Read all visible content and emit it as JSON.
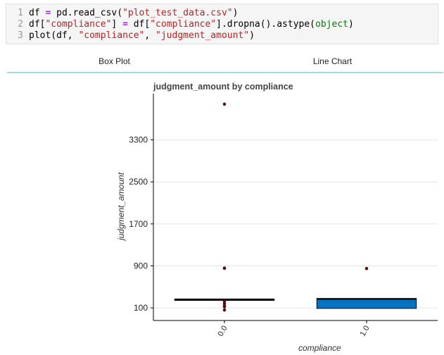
{
  "code_cell": {
    "lines": [
      {
        "no": "1",
        "parts": [
          {
            "t": "df ",
            "c": ""
          },
          {
            "t": "=",
            "c": "op"
          },
          {
            "t": " pd.read_csv(",
            "c": ""
          },
          {
            "t": "\"plot_test_data.csv\"",
            "c": "str"
          },
          {
            "t": ")",
            "c": ""
          }
        ]
      },
      {
        "no": "2",
        "parts": [
          {
            "t": "df[",
            "c": ""
          },
          {
            "t": "\"compliance\"",
            "c": "str"
          },
          {
            "t": "] ",
            "c": ""
          },
          {
            "t": "=",
            "c": "op"
          },
          {
            "t": " df[",
            "c": ""
          },
          {
            "t": "\"compliance\"",
            "c": "str"
          },
          {
            "t": "].dropna().astype(",
            "c": ""
          },
          {
            "t": "object",
            "c": "kw"
          },
          {
            "t": ")",
            "c": ""
          }
        ]
      },
      {
        "no": "3",
        "parts": [
          {
            "t": "plot(df, ",
            "c": ""
          },
          {
            "t": "\"compliance\"",
            "c": "str"
          },
          {
            "t": ", ",
            "c": ""
          },
          {
            "t": "\"judgment_amount\"",
            "c": "str"
          },
          {
            "t": ")",
            "c": ""
          }
        ]
      }
    ]
  },
  "tabs": [
    {
      "label": "Box Plot",
      "active": true
    },
    {
      "label": "Line Chart",
      "active": false
    }
  ],
  "chart_data": {
    "type": "box",
    "title": "judgment_amount by compliance",
    "xlabel": "compliance",
    "ylabel": "judgment_amount",
    "categories": [
      "0.0",
      "1.0"
    ],
    "y_ticks": [
      100,
      900,
      1700,
      2500,
      3300
    ],
    "ylim": [
      -140,
      4180
    ],
    "grid": "horizontal",
    "boxes": [
      {
        "category": "0.0",
        "q1": 245,
        "median": 250,
        "q3": 270,
        "whisker_low": 245,
        "whisker_high": 270,
        "fill": "#000000",
        "outliers": [
          3980,
          858,
          855,
          220,
          180,
          140,
          120,
          60
        ]
      },
      {
        "category": "1.0",
        "q1": 90,
        "median": 270,
        "q3": 280,
        "whisker_low": 90,
        "whisker_high": 280,
        "fill": "#0074c2",
        "outliers": [
          850
        ]
      }
    ],
    "colors": {
      "grid": "#e4e4e4",
      "axis": "#000000",
      "outlier": "#6b0000"
    }
  }
}
